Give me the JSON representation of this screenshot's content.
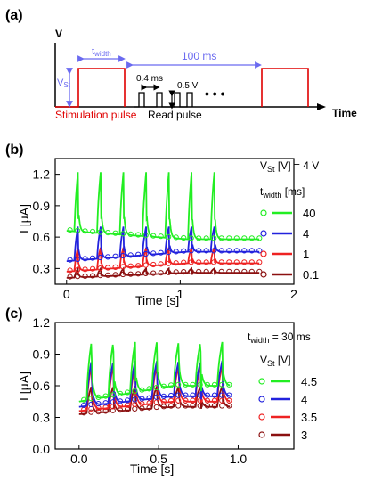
{
  "panel_a": {
    "label": "(a)",
    "v_axis": "V",
    "time_axis": "Time",
    "t_width_main": "t",
    "t_width_sub": "width",
    "v_st_main": "V",
    "v_st_sub": "St",
    "period_label": "100 ms",
    "read_spacing_label": "0.4 ms",
    "read_amp_label": "0.5 V",
    "ellipsis": "• • •",
    "stim_label": "Stimulation pulse",
    "read_label": "Read pulse",
    "stim_color": "#e00000",
    "arrow_color": "#6a6af0"
  },
  "chart_data": [
    {
      "panel": "(b)",
      "type": "line",
      "xlabel": "Time [s]",
      "ylabel": "I [μA]",
      "xlim": [
        -0.1,
        2.0
      ],
      "ylim": [
        0.15,
        1.35
      ],
      "x_ticks": [
        "0",
        "1",
        "2"
      ],
      "y_ticks": [
        "0.3",
        "0.6",
        "0.9",
        "1.2"
      ],
      "legend_header": "V",
      "legend_header_sub": "St",
      "legend_header_rest": " [V] = 4 V",
      "legend_title": "t",
      "legend_title_sub": "width",
      "legend_title_rest": " [ms]",
      "series": [
        {
          "name": "40",
          "color": "#22ee22",
          "pulses": 7,
          "period": 0.2,
          "duration": 1.7,
          "base_start": 0.66,
          "base_end": 0.58,
          "peak": 1.22,
          "min_after": 0.55
        },
        {
          "name": "4",
          "color": "#2222dd",
          "pulses": 7,
          "period": 0.2,
          "duration": 1.7,
          "base_start": 0.37,
          "base_end": 0.46,
          "peak": 0.7,
          "min_after": 0.38
        },
        {
          "name": "1",
          "color": "#ee2222",
          "pulses": 7,
          "period": 0.2,
          "duration": 1.7,
          "base_start": 0.27,
          "base_end": 0.35,
          "peak": 0.5,
          "min_after": 0.28
        },
        {
          "name": "0.1",
          "color": "#8b1010",
          "pulses": 7,
          "period": 0.2,
          "duration": 1.7,
          "base_start": 0.21,
          "base_end": 0.26,
          "peak": 0.3,
          "min_after": 0.21
        }
      ]
    },
    {
      "panel": "(c)",
      "type": "line",
      "xlabel": "Time [s]",
      "ylabel": "I [μA]",
      "xlim": [
        -0.15,
        1.35
      ],
      "ylim": [
        0.0,
        1.2
      ],
      "x_ticks": [
        "0.0",
        "0.5",
        "1.0"
      ],
      "y_ticks": [
        "0.0",
        "0.3",
        "0.6",
        "0.9",
        "1.2"
      ],
      "legend_header": "t",
      "legend_header_sub": "width",
      "legend_header_rest": " = 30 ms",
      "legend_title": "V",
      "legend_title_sub": "St",
      "legend_title_rest": " [V]",
      "series": [
        {
          "name": "4.5",
          "color": "#22ee22",
          "pulses": 7,
          "period": 0.137,
          "duration": 0.95,
          "base_start": 0.45,
          "base_end": 0.6,
          "peak": 1.02,
          "min_after": 0.46
        },
        {
          "name": "4",
          "color": "#2222dd",
          "pulses": 7,
          "period": 0.137,
          "duration": 0.95,
          "base_start": 0.4,
          "base_end": 0.5,
          "peak": 0.84,
          "min_after": 0.4
        },
        {
          "name": "3.5",
          "color": "#ee2222",
          "pulses": 7,
          "period": 0.137,
          "duration": 0.95,
          "base_start": 0.36,
          "base_end": 0.45,
          "peak": 0.8,
          "min_after": 0.38
        },
        {
          "name": "3",
          "color": "#8b1010",
          "pulses": 7,
          "period": 0.137,
          "duration": 0.95,
          "base_start": 0.33,
          "base_end": 0.4,
          "peak": 0.6,
          "min_after": 0.34
        }
      ]
    }
  ]
}
